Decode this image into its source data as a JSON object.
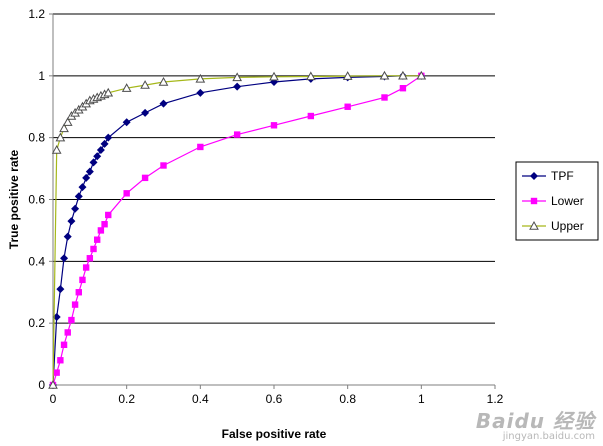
{
  "chart_data": {
    "type": "line",
    "xlabel": "False positive rate",
    "ylabel": "True positive rate",
    "xlim": [
      0,
      1.2
    ],
    "ylim": [
      0,
      1.2
    ],
    "xticks": [
      "0",
      "0.2",
      "0.4",
      "0.6",
      "0.8",
      "1",
      "1.2"
    ],
    "yticks": [
      "0",
      "0.2",
      "0.4",
      "0.6",
      "0.8",
      "1",
      "1.2"
    ],
    "grid": "horizontal",
    "legend_position": "right",
    "series": [
      {
        "name": "TPF",
        "color": "#000080",
        "marker": "diamond",
        "x": [
          0,
          0.01,
          0.02,
          0.03,
          0.04,
          0.05,
          0.06,
          0.07,
          0.08,
          0.09,
          0.1,
          0.11,
          0.12,
          0.13,
          0.14,
          0.15,
          0.2,
          0.25,
          0.3,
          0.4,
          0.5,
          0.6,
          0.7,
          0.8,
          0.9,
          0.95,
          1.0
        ],
        "y": [
          0,
          0.22,
          0.31,
          0.41,
          0.48,
          0.53,
          0.57,
          0.61,
          0.64,
          0.67,
          0.69,
          0.72,
          0.74,
          0.76,
          0.78,
          0.8,
          0.85,
          0.88,
          0.91,
          0.945,
          0.965,
          0.98,
          0.99,
          0.995,
          0.998,
          1.0,
          1.0
        ]
      },
      {
        "name": "Lower",
        "color": "#ff00ff",
        "marker": "square",
        "x": [
          0,
          0.01,
          0.02,
          0.03,
          0.04,
          0.05,
          0.06,
          0.07,
          0.08,
          0.09,
          0.1,
          0.11,
          0.12,
          0.13,
          0.14,
          0.15,
          0.2,
          0.25,
          0.3,
          0.4,
          0.5,
          0.6,
          0.7,
          0.8,
          0.9,
          0.95,
          1.0
        ],
        "y": [
          0,
          0.04,
          0.08,
          0.13,
          0.17,
          0.21,
          0.26,
          0.3,
          0.34,
          0.38,
          0.41,
          0.44,
          0.47,
          0.5,
          0.52,
          0.55,
          0.62,
          0.67,
          0.71,
          0.77,
          0.81,
          0.84,
          0.87,
          0.9,
          0.93,
          0.96,
          1.0
        ]
      },
      {
        "name": "Upper",
        "color": "#a6b81a",
        "marker": "triangle",
        "x": [
          0,
          0.01,
          0.02,
          0.03,
          0.04,
          0.05,
          0.06,
          0.07,
          0.08,
          0.09,
          0.1,
          0.11,
          0.12,
          0.13,
          0.14,
          0.15,
          0.2,
          0.25,
          0.3,
          0.4,
          0.5,
          0.6,
          0.7,
          0.8,
          0.9,
          0.95,
          1.0
        ],
        "y": [
          0,
          0.76,
          0.8,
          0.83,
          0.85,
          0.87,
          0.88,
          0.89,
          0.9,
          0.91,
          0.92,
          0.925,
          0.93,
          0.935,
          0.94,
          0.945,
          0.96,
          0.97,
          0.98,
          0.99,
          0.995,
          0.997,
          0.998,
          0.999,
          1.0,
          1.0,
          1.0
        ]
      }
    ]
  },
  "watermark": {
    "main": "Baidu 经验",
    "sub": "jingyan.baidu.com"
  }
}
